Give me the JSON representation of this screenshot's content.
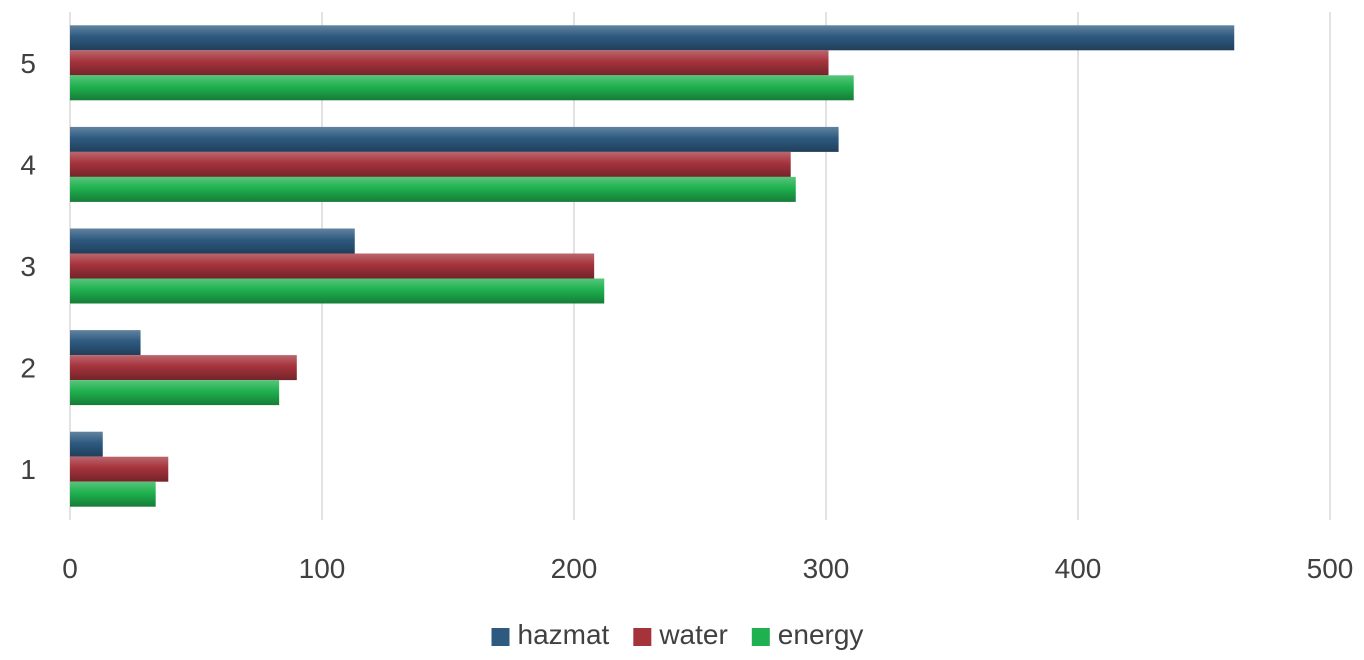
{
  "chart_data": {
    "type": "bar",
    "orientation": "horizontal",
    "categories": [
      "1",
      "2",
      "3",
      "4",
      "5"
    ],
    "series": [
      {
        "name": "hazmat",
        "color": "#2e5a80",
        "values": [
          13,
          28,
          113,
          305,
          462
        ]
      },
      {
        "name": "water",
        "color": "#a5333c",
        "values": [
          39,
          90,
          208,
          286,
          301
        ]
      },
      {
        "name": "energy",
        "color": "#1fb14f",
        "values": [
          34,
          83,
          212,
          288,
          311
        ]
      }
    ],
    "x_ticks": [
      "0",
      "100",
      "200",
      "300",
      "400",
      "500"
    ],
    "xlim": [
      0,
      500
    ],
    "grid": "vertical",
    "legend": "bottom-center",
    "title": "",
    "xlabel": "",
    "ylabel": ""
  }
}
